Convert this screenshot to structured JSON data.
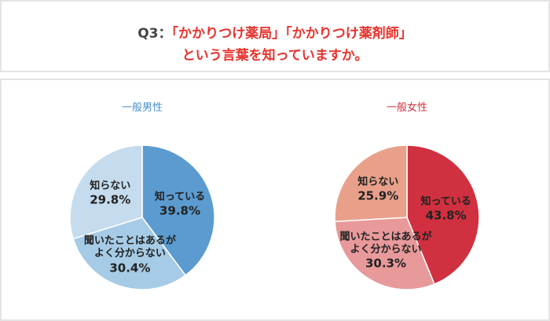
{
  "header": {
    "prefix": "Q3：",
    "lines": [
      "「かかりつけ薬局」「かかりつけ薬剤師」",
      "という言葉を知っていますか。"
    ]
  },
  "chart_data": [
    {
      "type": "pie",
      "title": "一般男性",
      "title_color": "#4a8fc6",
      "categories": [
        "知っている",
        "聞いたことはあるがよく分からない",
        "知らない"
      ],
      "values": [
        39.8,
        30.4,
        29.8
      ],
      "value_labels": [
        "39.8%",
        "30.4%",
        "29.8%"
      ],
      "colors": [
        "#5b9bd0",
        "#a6cbe6",
        "#c5dcee"
      ]
    },
    {
      "type": "pie",
      "title": "一般女性",
      "title_color": "#d0303f",
      "categories": [
        "知っている",
        "聞いたことはあるがよく分からない",
        "知らない"
      ],
      "values": [
        43.8,
        30.3,
        25.9
      ],
      "value_labels": [
        "43.8%",
        "30.3%",
        "25.9%"
      ],
      "colors": [
        "#d0303f",
        "#e8999a",
        "#e9a08a"
      ]
    }
  ]
}
